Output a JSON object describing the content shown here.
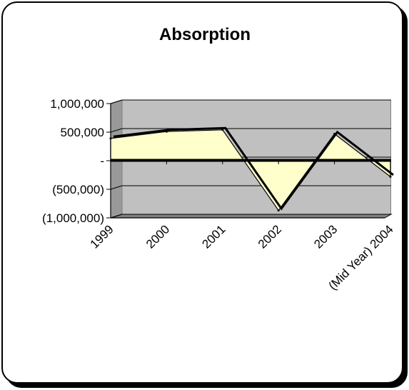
{
  "chart_data": {
    "type": "area",
    "title": "Absorption",
    "xlabel": "",
    "ylabel": "",
    "categories": [
      "1999",
      "2000",
      "2001",
      "2002",
      "2003",
      "(Mid Year) 2004"
    ],
    "values": [
      390000,
      510000,
      540000,
      -870000,
      470000,
      -280000
    ],
    "ylim": [
      -1000000,
      1000000
    ],
    "yticks": [
      1000000,
      500000,
      0,
      -500000,
      -1000000
    ],
    "ytick_labels": [
      "1,000,000",
      "500,000",
      "-",
      "(500,000)",
      "(1,000,000)"
    ],
    "grid": true,
    "legend": "none",
    "colors": {
      "area_fill": "#ffffcc",
      "plot_back": "#c0c0c0",
      "plot_side": "#999999",
      "plot_floor": "#808080",
      "line": "#000000"
    }
  }
}
